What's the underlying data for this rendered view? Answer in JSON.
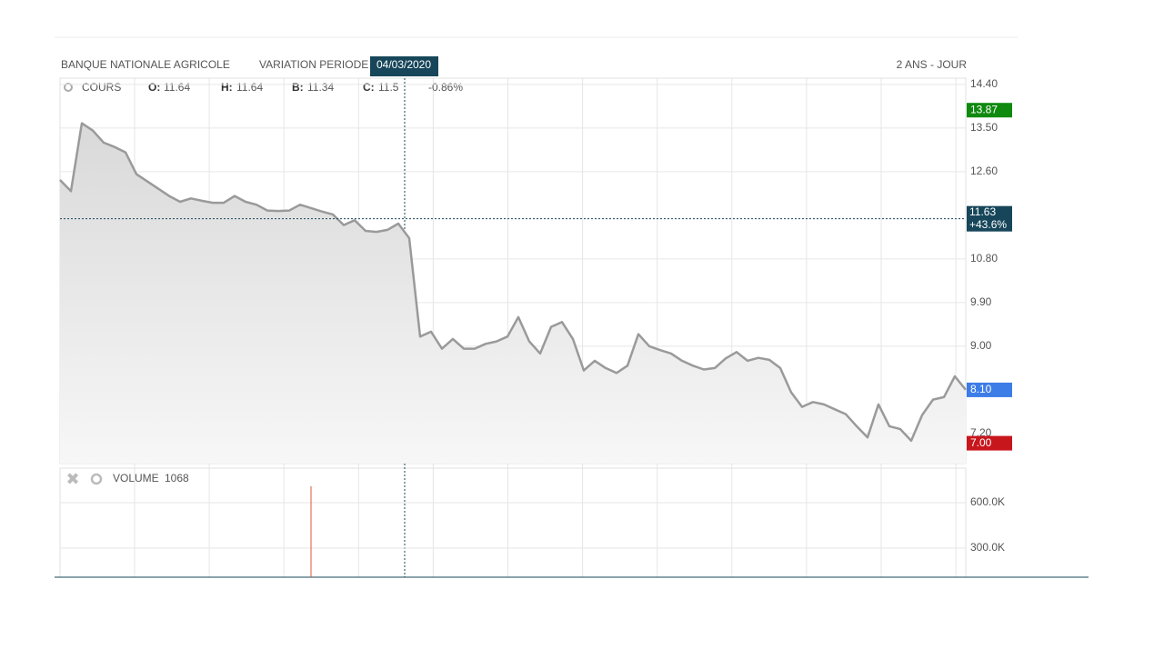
{
  "chart_data": {
    "type": "line",
    "header": {
      "company": "BANQUE NATIONALE AGRICOLE",
      "variation": "VARIATION PERIODE",
      "date": "04/03/2020",
      "period": "2 ANS - JOUR"
    },
    "legend": {
      "series": "COURS",
      "items": [
        {
          "key": "O:",
          "value": 11.64
        },
        {
          "key": "H:",
          "value": 11.64
        },
        {
          "key": "B:",
          "value": 11.34
        },
        {
          "key": "C:",
          "value": 11.5
        }
      ],
      "change": "-0.86%"
    },
    "series": [
      {
        "name": "COURS",
        "color": "#9a9a9a",
        "values": [
          12.43,
          12.2,
          13.6,
          13.45,
          13.2,
          13.11,
          13.0,
          12.55,
          12.4,
          12.25,
          12.1,
          11.98,
          12.05,
          12.0,
          11.96,
          11.96,
          12.1,
          11.98,
          11.92,
          11.8,
          11.79,
          11.8,
          11.92,
          11.85,
          11.78,
          11.72,
          11.5,
          11.6,
          11.38,
          11.36,
          11.4,
          11.53,
          11.23,
          9.2,
          9.3,
          8.95,
          9.15,
          8.95,
          8.95,
          9.05,
          9.1,
          9.2,
          9.6,
          9.1,
          8.85,
          9.4,
          9.5,
          9.15,
          8.5,
          8.7,
          8.55,
          8.45,
          8.6,
          9.25,
          9.0,
          8.92,
          8.85,
          8.7,
          8.6,
          8.52,
          8.55,
          8.75,
          8.88,
          8.7,
          8.76,
          8.72,
          8.55,
          8.05,
          7.75,
          7.85,
          7.8,
          7.7,
          7.6,
          7.35,
          7.12,
          7.8,
          7.35,
          7.29,
          7.05,
          7.58,
          7.9,
          7.95,
          8.38,
          8.1
        ]
      }
    ],
    "ylim": [
      6.58,
      14.53
    ],
    "yticks": [
      {
        "value": 14.4,
        "label": "14.40"
      },
      {
        "value": 13.5,
        "label": "13.50"
      },
      {
        "value": 12.6,
        "label": "12.60"
      },
      {
        "value": 10.8,
        "label": "10.80"
      },
      {
        "value": 9.9,
        "label": "9.90"
      },
      {
        "value": 9.0,
        "label": "9.00"
      },
      {
        "value": 7.2,
        "label": "7.20"
      }
    ],
    "grid": true,
    "markers": [
      {
        "value": 13.87,
        "label": "13.87",
        "color": "#0f8a0f"
      },
      {
        "value": 8.1,
        "label": "8.10",
        "color": "#3d7de8"
      },
      {
        "value": 7.0,
        "label": "7.00",
        "color": "#c8161d"
      }
    ],
    "crosshair": {
      "value": 11.63,
      "change": "+43.6%",
      "color": "#17465a"
    },
    "volume": {
      "name": "VOLUME",
      "last": 1068,
      "color": "#e0553a",
      "values": [
        0,
        0,
        0,
        0,
        0,
        0,
        0,
        0,
        0,
        0,
        0,
        0,
        0,
        0,
        0,
        0,
        0,
        0,
        0,
        0,
        0,
        0,
        0,
        708000,
        0,
        0,
        0,
        0,
        0,
        0,
        0,
        0,
        0,
        0,
        0,
        0,
        0,
        0,
        0,
        0,
        0,
        0,
        0,
        0,
        0,
        0,
        0,
        0,
        0,
        0,
        0,
        0,
        0,
        0,
        0,
        0,
        0,
        0,
        0,
        0,
        0,
        0,
        0,
        0,
        0,
        0,
        0,
        0,
        0,
        0,
        0,
        0,
        0,
        0,
        0,
        0,
        0,
        0,
        0,
        0,
        0,
        0,
        0,
        0
      ],
      "ylim": [
        108000,
        828000
      ],
      "yticks": [
        {
          "value": 600000,
          "label": "600.0K"
        },
        {
          "value": 300000,
          "label": "300.0K"
        }
      ]
    }
  }
}
